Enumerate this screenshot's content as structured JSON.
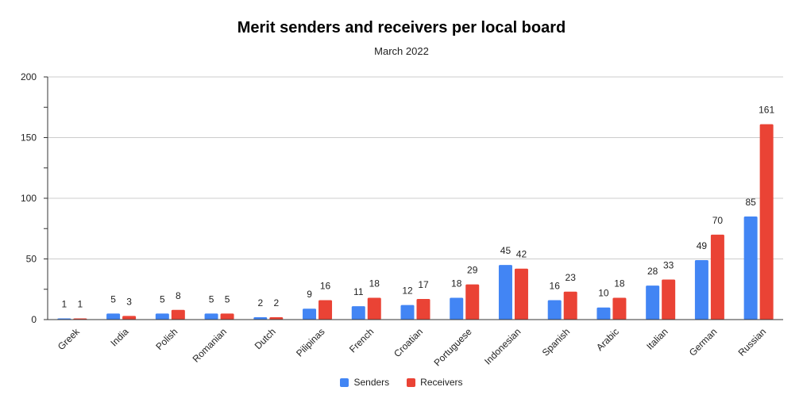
{
  "chart_data": {
    "type": "bar",
    "title": "Merit senders and receivers per local board",
    "subtitle": "March 2022",
    "xlabel": "",
    "ylabel": "",
    "ylim": [
      0,
      200
    ],
    "yticks": [
      0,
      50,
      100,
      150,
      200
    ],
    "grid": true,
    "legend_position": "bottom",
    "categories": [
      "Greek",
      "India",
      "Polish",
      "Romanian",
      "Dutch",
      "Pilipinas",
      "French",
      "Croatian",
      "Portuguese",
      "Indonesian",
      "Spanish",
      "Arabic",
      "Italian",
      "German",
      "Russian"
    ],
    "series": [
      {
        "name": "Senders",
        "color": "#4285f4",
        "values": [
          1,
          5,
          5,
          5,
          2,
          9,
          11,
          12,
          18,
          45,
          16,
          10,
          28,
          49,
          85
        ]
      },
      {
        "name": "Receivers",
        "color": "#ea4335",
        "values": [
          1,
          3,
          8,
          5,
          2,
          16,
          18,
          17,
          29,
          42,
          23,
          18,
          33,
          70,
          161
        ]
      }
    ]
  }
}
